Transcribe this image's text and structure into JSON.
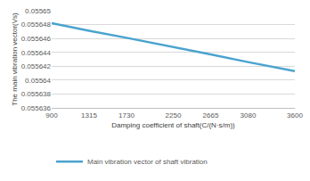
{
  "chart_data": {
    "type": "line",
    "x_label": "Damping coefficient of shaft(C/(N·s/m))",
    "y_label": "The main vibration vector(Vs)",
    "x": [
      900,
      1315,
      1730,
      2250,
      2665,
      3080,
      3600
    ],
    "series": [
      {
        "name": "Main vibration vector of shaft vibration",
        "color": "#4aa3cf",
        "values": [
          0.0556482,
          0.0556471,
          0.0556461,
          0.0556448,
          0.0556437,
          0.0556426,
          0.0556413
        ]
      }
    ],
    "xlim": [
      900,
      3600
    ],
    "xticks": [
      900,
      1315,
      1730,
      2250,
      2665,
      3080,
      3600
    ],
    "ylim": [
      0.055636,
      0.05565
    ],
    "yticks": [
      0.055636,
      0.055638,
      0.05564,
      0.055642,
      0.055644,
      0.055646,
      0.055648,
      0.05565
    ],
    "grid": true,
    "legend": "bottom"
  }
}
